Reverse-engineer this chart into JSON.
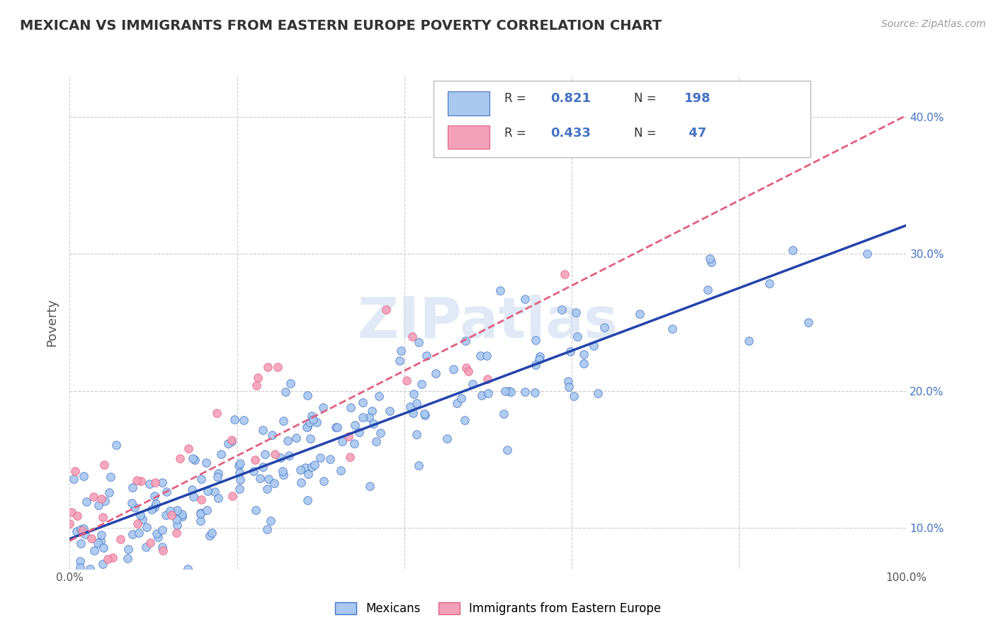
{
  "title": "MEXICAN VS IMMIGRANTS FROM EASTERN EUROPE POVERTY CORRELATION CHART",
  "source": "Source: ZipAtlas.com",
  "ylabel": "Poverty",
  "xlim": [
    0,
    1.0
  ],
  "ylim": [
    0.07,
    0.43
  ],
  "xticks": [
    0.0,
    0.2,
    0.4,
    0.6,
    0.8,
    1.0
  ],
  "xticklabels": [
    "0.0%",
    "",
    "",
    "",
    "",
    "100.0%"
  ],
  "yticks": [
    0.1,
    0.2,
    0.3,
    0.4
  ],
  "yticklabels": [
    "10.0%",
    "20.0%",
    "30.0%",
    "40.0%"
  ],
  "color_blue": "#A8C8F0",
  "color_pink": "#F4A0B8",
  "color_blue_edge": "#4472C4",
  "color_pink_edge": "#E06080",
  "color_blue_text": "#4472C4",
  "line_blue": "#2244AA",
  "line_pink": "#E06080",
  "watermark": "ZIPatlas",
  "legend1_label": "Mexicans",
  "legend2_label": "Immigrants from Eastern Europe",
  "background_color": "#FFFFFF",
  "grid_color": "#CCCCCC",
  "R1": 0.821,
  "N1": 198,
  "R2": 0.433,
  "N2": 47,
  "title_color": "#333333",
  "source_color": "#999999",
  "ylabel_color": "#555555"
}
